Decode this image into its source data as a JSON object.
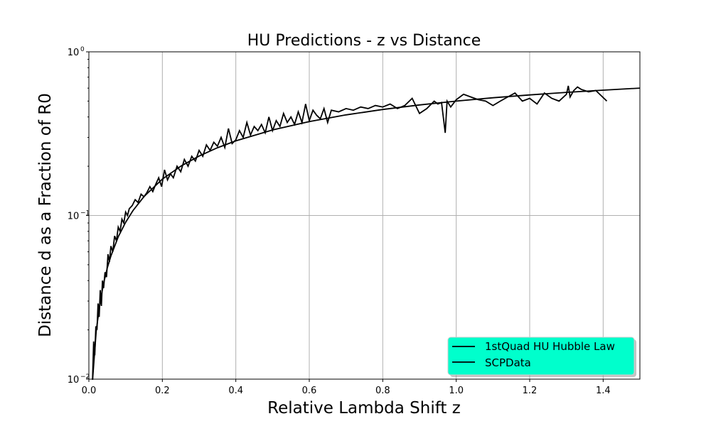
{
  "chart_data": {
    "type": "line",
    "title": "HU Predictions - z vs Distance",
    "xlabel": "Relative Lambda Shift z",
    "ylabel": "Distance d as a Fraction of R0",
    "xlim": [
      0.0,
      1.5
    ],
    "ylim": [
      0.01,
      1.0
    ],
    "yscale": "log",
    "grid": true,
    "legend_position": "bottom-right",
    "legend_bg": "#00ffcc",
    "x_ticks": [
      "0.0",
      "0.2",
      "0.4",
      "0.6",
      "0.8",
      "1.0",
      "1.2",
      "1.4"
    ],
    "y_ticks": [
      {
        "value": 0.01,
        "base": "10",
        "exp": "−2"
      },
      {
        "value": 0.1,
        "base": "10",
        "exp": "−1"
      },
      {
        "value": 1.0,
        "base": "10",
        "exp": "0"
      }
    ],
    "series": [
      {
        "name": "1stQuad HU Hubble Law",
        "color": "#000000",
        "x": [
          0.01,
          0.02,
          0.03,
          0.04,
          0.05,
          0.06,
          0.08,
          0.1,
          0.12,
          0.15,
          0.2,
          0.25,
          0.3,
          0.35,
          0.4,
          0.5,
          0.6,
          0.7,
          0.8,
          0.9,
          1.0,
          1.1,
          1.2,
          1.3,
          1.4,
          1.5
        ],
        "y": [
          0.0099,
          0.0196,
          0.0291,
          0.0385,
          0.0476,
          0.0566,
          0.0741,
          0.0909,
          0.1071,
          0.1304,
          0.1667,
          0.2,
          0.2308,
          0.2593,
          0.2857,
          0.3333,
          0.375,
          0.4118,
          0.4444,
          0.4737,
          0.5,
          0.5238,
          0.5455,
          0.5652,
          0.5833,
          0.6
        ]
      },
      {
        "name": "SCPData",
        "color": "#000000",
        "x": [
          0.01,
          0.013,
          0.016,
          0.019,
          0.022,
          0.025,
          0.028,
          0.031,
          0.034,
          0.037,
          0.04,
          0.044,
          0.048,
          0.052,
          0.056,
          0.06,
          0.065,
          0.07,
          0.075,
          0.08,
          0.085,
          0.09,
          0.095,
          0.1,
          0.105,
          0.11,
          0.118,
          0.126,
          0.134,
          0.142,
          0.15,
          0.158,
          0.166,
          0.174,
          0.182,
          0.19,
          0.198,
          0.206,
          0.214,
          0.222,
          0.23,
          0.24,
          0.25,
          0.26,
          0.27,
          0.28,
          0.29,
          0.3,
          0.31,
          0.32,
          0.33,
          0.34,
          0.35,
          0.36,
          0.37,
          0.38,
          0.39,
          0.4,
          0.41,
          0.42,
          0.43,
          0.44,
          0.45,
          0.46,
          0.47,
          0.48,
          0.49,
          0.5,
          0.51,
          0.52,
          0.53,
          0.54,
          0.55,
          0.56,
          0.57,
          0.58,
          0.59,
          0.6,
          0.61,
          0.62,
          0.63,
          0.64,
          0.65,
          0.66,
          0.68,
          0.7,
          0.72,
          0.74,
          0.76,
          0.78,
          0.8,
          0.82,
          0.84,
          0.86,
          0.88,
          0.9,
          0.92,
          0.94,
          0.95,
          0.96,
          0.97,
          0.975,
          0.985,
          1.0,
          1.01,
          1.02,
          1.04,
          1.06,
          1.08,
          1.1,
          1.12,
          1.14,
          1.16,
          1.18,
          1.2,
          1.22,
          1.24,
          1.26,
          1.28,
          1.3,
          1.305,
          1.31,
          1.32,
          1.33,
          1.34,
          1.36,
          1.38,
          1.41
        ],
        "y": [
          0.01,
          0.017,
          0.014,
          0.021,
          0.02,
          0.029,
          0.024,
          0.035,
          0.028,
          0.04,
          0.036,
          0.045,
          0.042,
          0.058,
          0.052,
          0.065,
          0.06,
          0.075,
          0.07,
          0.085,
          0.08,
          0.095,
          0.09,
          0.105,
          0.1,
          0.11,
          0.115,
          0.125,
          0.12,
          0.135,
          0.13,
          0.138,
          0.15,
          0.14,
          0.155,
          0.17,
          0.15,
          0.19,
          0.165,
          0.18,
          0.17,
          0.2,
          0.185,
          0.22,
          0.2,
          0.23,
          0.215,
          0.25,
          0.23,
          0.27,
          0.25,
          0.28,
          0.265,
          0.3,
          0.26,
          0.34,
          0.275,
          0.29,
          0.33,
          0.3,
          0.37,
          0.31,
          0.35,
          0.33,
          0.36,
          0.32,
          0.4,
          0.33,
          0.38,
          0.35,
          0.42,
          0.37,
          0.4,
          0.36,
          0.43,
          0.37,
          0.48,
          0.38,
          0.44,
          0.41,
          0.39,
          0.45,
          0.37,
          0.44,
          0.43,
          0.45,
          0.44,
          0.46,
          0.45,
          0.47,
          0.46,
          0.48,
          0.45,
          0.47,
          0.52,
          0.42,
          0.45,
          0.5,
          0.48,
          0.49,
          0.32,
          0.5,
          0.46,
          0.51,
          0.53,
          0.55,
          0.53,
          0.51,
          0.5,
          0.47,
          0.5,
          0.53,
          0.56,
          0.5,
          0.52,
          0.48,
          0.56,
          0.52,
          0.5,
          0.55,
          0.62,
          0.53,
          0.58,
          0.61,
          0.59,
          0.57,
          0.58,
          0.5
        ]
      }
    ]
  }
}
